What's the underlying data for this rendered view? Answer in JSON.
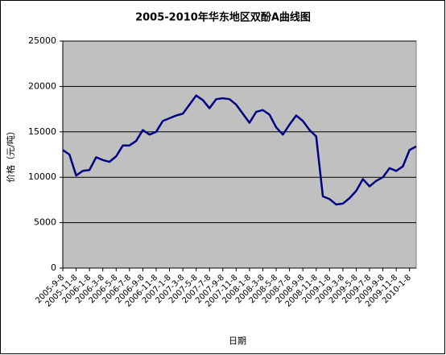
{
  "chart_data": {
    "type": "line",
    "title": "2005-2010年华东地区双酚A曲线图",
    "x_label": "日期",
    "y_label": "价格（元/吨）",
    "x": [
      "2005-9-8",
      null,
      "2005-11-8",
      null,
      "2006-1-8",
      null,
      "2006-3-8",
      null,
      "2006-5-8",
      null,
      "2006-7-8",
      null,
      "2006-9-8",
      null,
      "2006-11-8",
      null,
      "2007-1-8",
      null,
      "2007-3-8",
      null,
      "2007-5-8",
      null,
      "2007-7-8",
      null,
      "2007-9-8",
      null,
      "2007-11-8",
      null,
      "2008-1-8",
      null,
      "2008-3-8",
      null,
      "2008-5-8",
      null,
      "2008-7-8",
      null,
      "2008-9-8",
      null,
      "2008-11-8",
      null,
      "2009-1-8",
      null,
      "2009-3-8",
      null,
      "2009-5-8",
      null,
      "2009-7-8",
      null,
      "2009-9-8",
      null,
      "2009-11-8",
      null,
      "2010-1-8",
      null
    ],
    "values": [
      13000,
      12500,
      10200,
      10700,
      10800,
      12200,
      11900,
      11700,
      12300,
      13500,
      13500,
      14000,
      15200,
      14700,
      15000,
      16200,
      16500,
      16800,
      17000,
      18000,
      19000,
      18500,
      17600,
      18600,
      18700,
      18600,
      18000,
      17000,
      16000,
      17200,
      17400,
      16900,
      15500,
      14700,
      15800,
      16800,
      16200,
      15200,
      14500,
      7900,
      7600,
      7000,
      7100,
      7700,
      8500,
      9800,
      9000,
      9600,
      10000,
      11000,
      10700,
      11200,
      13000,
      13400
    ],
    "color": "#000080",
    "plot_background": "#c0c0c0",
    "ylim": [
      0,
      25000
    ],
    "yticks": [
      0,
      5000,
      10000,
      15000,
      20000,
      25000
    ],
    "grid": true
  }
}
